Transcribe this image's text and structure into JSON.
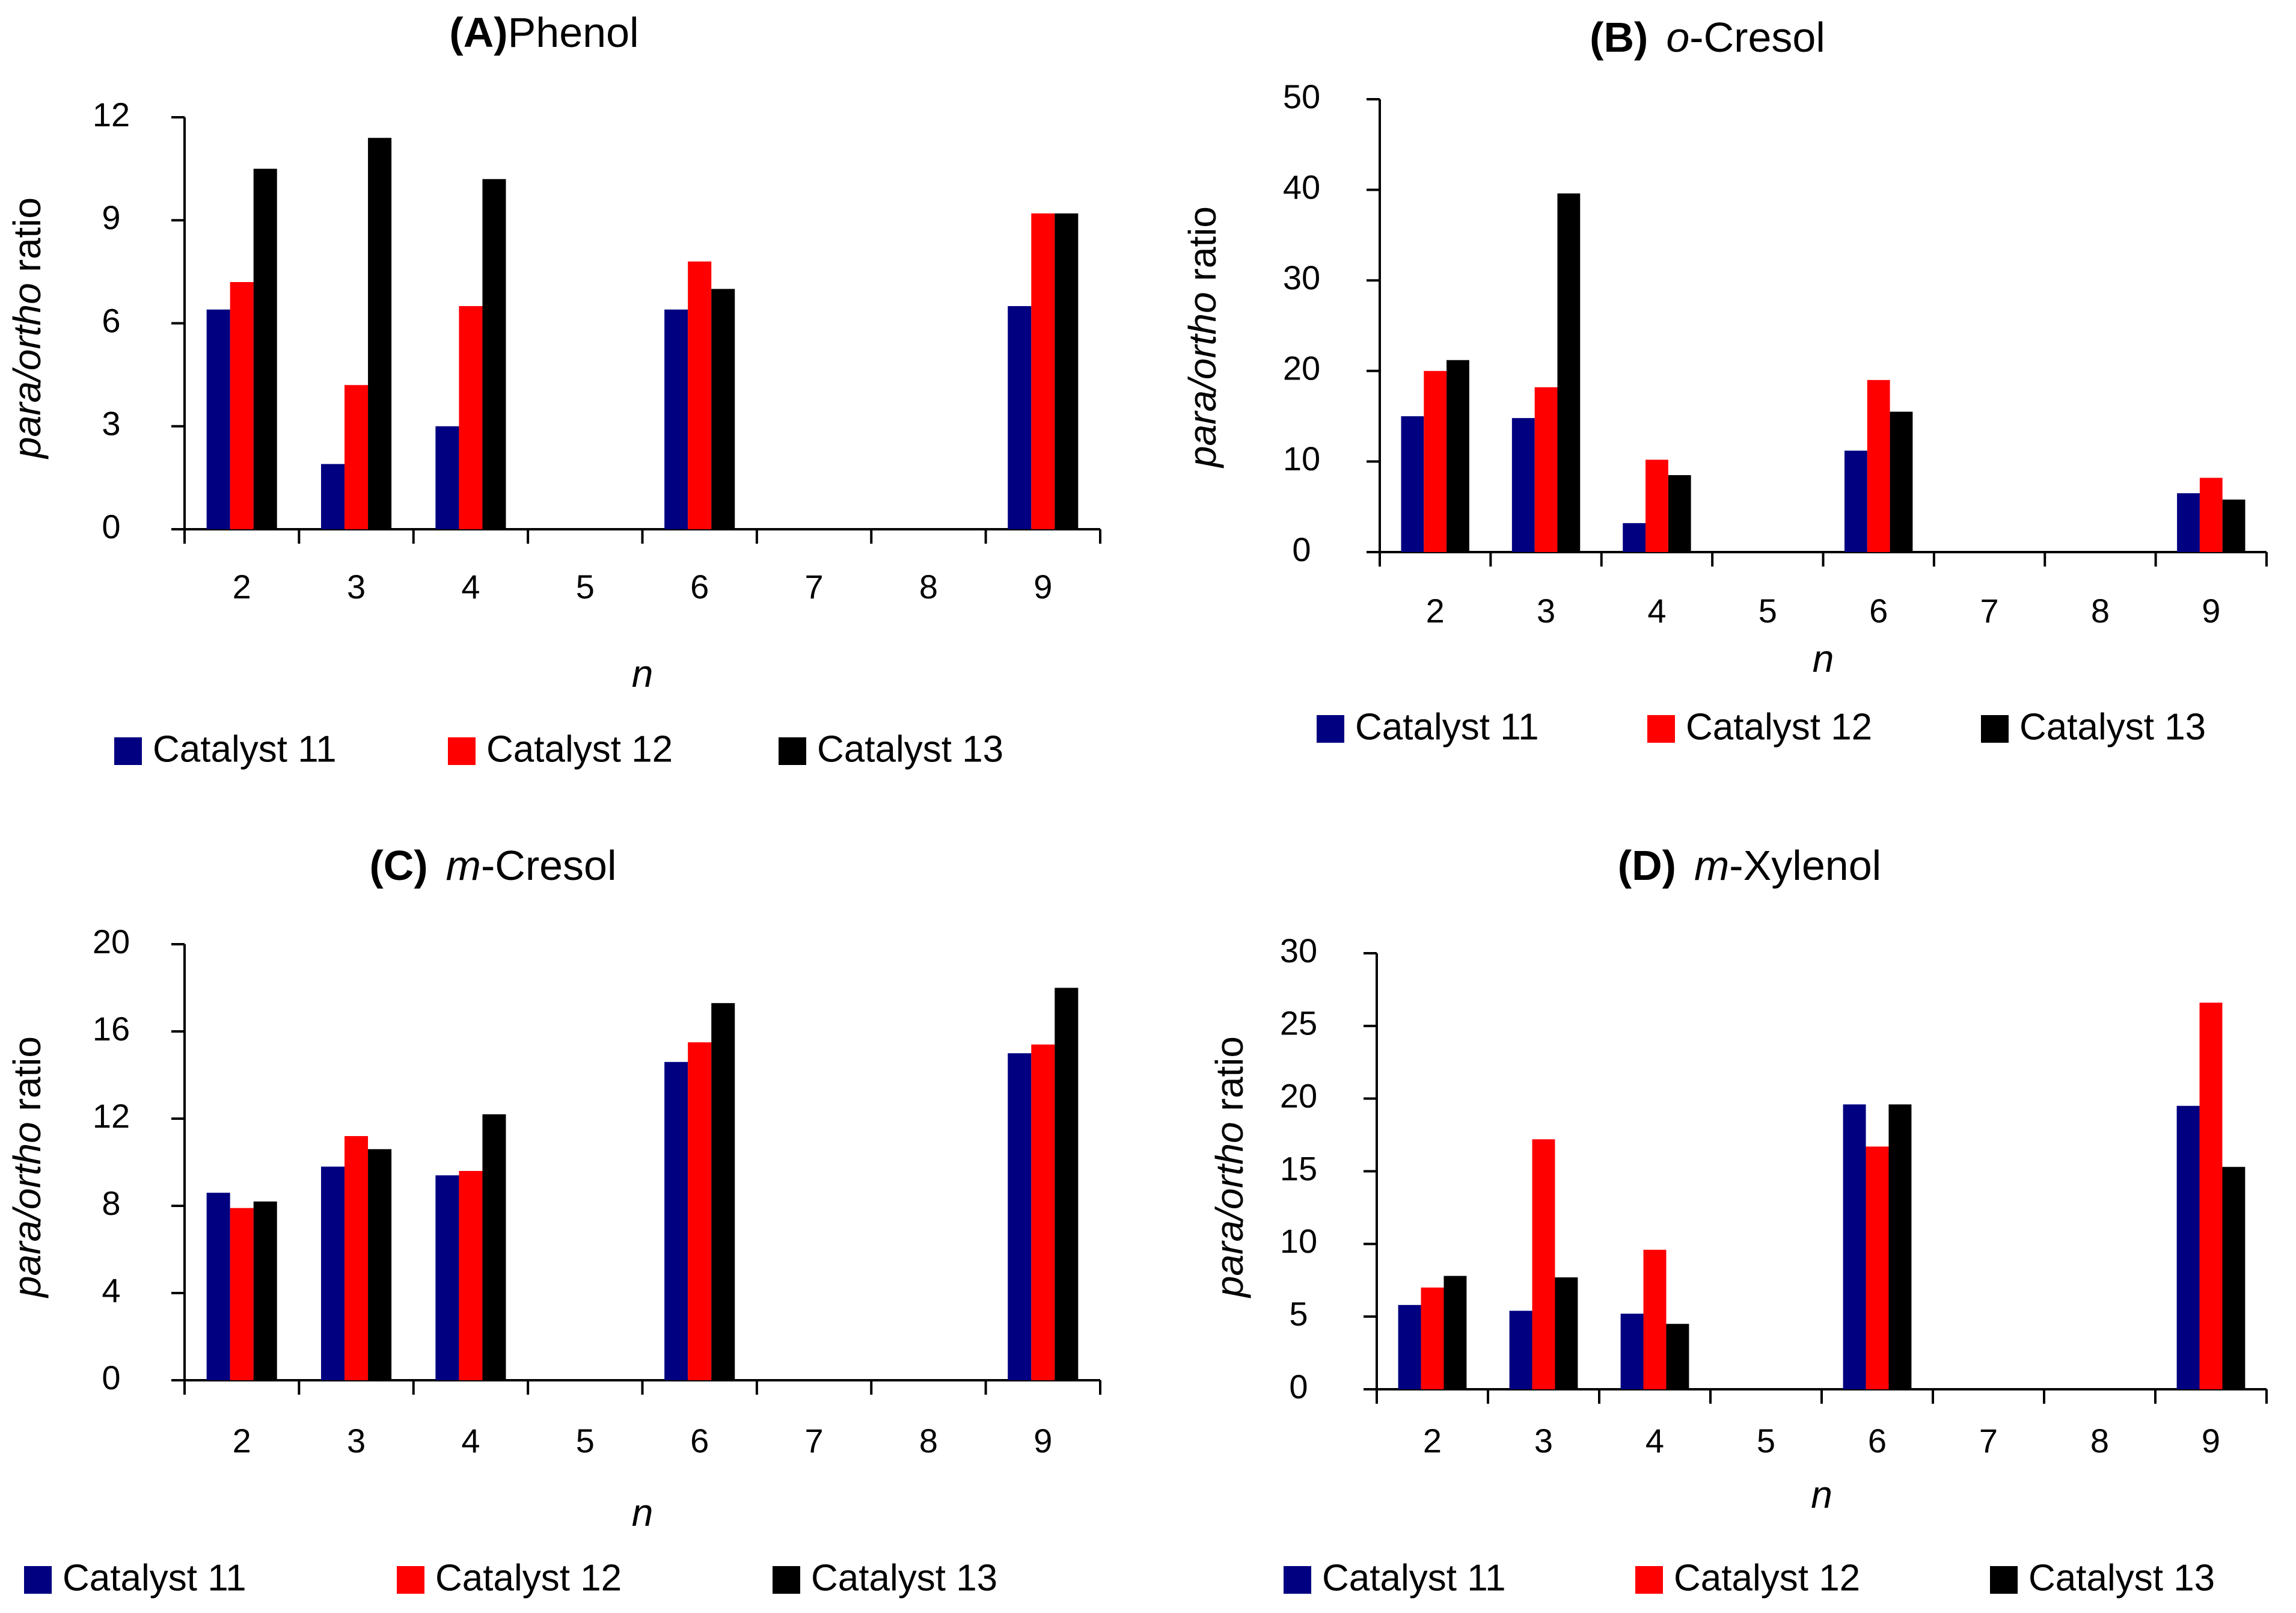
{
  "colors": {
    "series": [
      "#000080",
      "#ff0000",
      "#000000"
    ],
    "axis": "#000000",
    "background": "#ffffff"
  },
  "chart_data": [
    {
      "type": "bar",
      "panel_label": "(A)",
      "title": "Phenol",
      "title_italic_prefix": "",
      "xlabel": "n",
      "ylabel": {
        "italic": "para/ortho",
        "plain": " ratio"
      },
      "categories": [
        "2",
        "3",
        "4",
        "5",
        "6",
        "7",
        "8",
        "9"
      ],
      "ylim": [
        0,
        12
      ],
      "yticks": [
        0,
        3,
        6,
        9,
        12
      ],
      "grid": false,
      "legend_position": "bottom",
      "series": [
        {
          "name": "Catalyst 11",
          "values": [
            6.4,
            1.9,
            3.0,
            0,
            6.4,
            0,
            0,
            6.5
          ]
        },
        {
          "name": "Catalyst 12",
          "values": [
            7.2,
            4.2,
            6.5,
            0,
            7.8,
            0,
            0,
            9.2
          ]
        },
        {
          "name": "Catalyst 13",
          "values": [
            10.5,
            11.4,
            10.2,
            0,
            7.0,
            0,
            0,
            9.2
          ]
        }
      ]
    },
    {
      "type": "bar",
      "panel_label": "(B)",
      "title": "-Cresol",
      "title_italic_prefix": "o",
      "xlabel": "n",
      "ylabel": {
        "italic": "para/ortho",
        "plain": " ratio"
      },
      "categories": [
        "2",
        "3",
        "4",
        "5",
        "6",
        "7",
        "8",
        "9"
      ],
      "ylim": [
        0,
        50
      ],
      "yticks": [
        0,
        10,
        20,
        30,
        40,
        50
      ],
      "grid": false,
      "legend_position": "bottom",
      "series": [
        {
          "name": "Catalyst 11",
          "values": [
            15.0,
            14.8,
            3.2,
            0,
            11.2,
            0,
            0,
            6.5
          ]
        },
        {
          "name": "Catalyst 12",
          "values": [
            20.0,
            18.2,
            10.2,
            0,
            19.0,
            0,
            0,
            8.2
          ]
        },
        {
          "name": "Catalyst 13",
          "values": [
            21.2,
            39.6,
            8.5,
            0,
            15.5,
            0,
            0,
            5.8
          ]
        }
      ]
    },
    {
      "type": "bar",
      "panel_label": "(C)",
      "title": "-Cresol",
      "title_italic_prefix": "m",
      "xlabel": "n",
      "ylabel": {
        "italic": "para/ortho",
        "plain": " ratio"
      },
      "categories": [
        "2",
        "3",
        "4",
        "5",
        "6",
        "7",
        "8",
        "9"
      ],
      "ylim": [
        0,
        20
      ],
      "yticks": [
        0,
        4,
        8,
        12,
        16,
        20
      ],
      "grid": false,
      "legend_position": "bottom",
      "series": [
        {
          "name": "Catalyst 11",
          "values": [
            8.6,
            9.8,
            9.4,
            0,
            14.6,
            0,
            0,
            15.0
          ]
        },
        {
          "name": "Catalyst 12",
          "values": [
            7.9,
            11.2,
            9.6,
            0,
            15.5,
            0,
            0,
            15.4
          ]
        },
        {
          "name": "Catalyst 13",
          "values": [
            8.2,
            10.6,
            12.2,
            0,
            17.3,
            0,
            0,
            18.0
          ]
        }
      ]
    },
    {
      "type": "bar",
      "panel_label": "(D)",
      "title": "-Xylenol",
      "title_italic_prefix": "m",
      "xlabel": "n",
      "ylabel": {
        "italic": "para/ortho",
        "plain": " ratio"
      },
      "categories": [
        "2",
        "3",
        "4",
        "5",
        "6",
        "7",
        "8",
        "9"
      ],
      "ylim": [
        0,
        30
      ],
      "yticks": [
        0,
        5,
        10,
        15,
        20,
        25,
        30
      ],
      "grid": false,
      "legend_position": "bottom",
      "series": [
        {
          "name": "Catalyst 11",
          "values": [
            5.8,
            5.4,
            5.2,
            0,
            19.6,
            0,
            0,
            19.5
          ]
        },
        {
          "name": "Catalyst 12",
          "values": [
            7.0,
            17.2,
            9.6,
            0,
            16.7,
            0,
            0,
            26.6
          ]
        },
        {
          "name": "Catalyst 13",
          "values": [
            7.8,
            7.7,
            4.5,
            0,
            19.6,
            0,
            0,
            15.3
          ]
        }
      ]
    }
  ]
}
